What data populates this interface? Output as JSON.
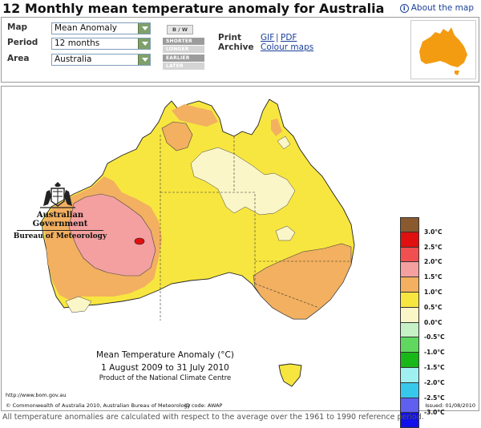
{
  "page": {
    "title": "12 Monthly mean temperature anomaly for Australia",
    "about_link": "About the map"
  },
  "controls": {
    "map_label": "Map",
    "map_value": "Mean Anomaly",
    "period_label": "Period",
    "period_value": "12 months",
    "area_label": "Area",
    "area_value": "Australia",
    "bw_button": "B / W",
    "shorter_button": "SHORTER",
    "longer_button": "LONGER",
    "earlier_button": "EARLIER",
    "later_button": "LATER",
    "print_label": "Print",
    "archive_label": "Archive",
    "gif_link": "GIF",
    "separator": "|",
    "pdf_link": "PDF",
    "colour_maps_link": "Colour maps"
  },
  "map": {
    "gov_line1": "Australian Government",
    "gov_line2": "Bureau of Meteorology",
    "caption_title": "Mean Temperature Anomaly (°C)",
    "caption_dates": "1 August 2009 to 31 July 2010",
    "caption_product": "Product of the National Climate Centre",
    "url": "http://www.bom.gov.au",
    "copyright": "© Commonwealth of Australia 2010, Australian Bureau of Meteorology",
    "id_code": "ID code: AWAP",
    "issued": "Issued: 01/08/2010",
    "legend": [
      {
        "label": "3.0°C",
        "color": "#8a5a2e"
      },
      {
        "label": "2.5°C",
        "color": "#e01010"
      },
      {
        "label": "2.0°C",
        "color": "#f25050"
      },
      {
        "label": "1.5°C",
        "color": "#f4a0a0"
      },
      {
        "label": "1.0°C",
        "color": "#f2b060"
      },
      {
        "label": "0.5°C",
        "color": "#f8e640"
      },
      {
        "label": "0.0°C",
        "color": "#fbf6c8"
      },
      {
        "label": "-0.5°C",
        "color": "#c6f0c6"
      },
      {
        "label": "-1.0°C",
        "color": "#60d860"
      },
      {
        "label": "-1.5°C",
        "color": "#18b818"
      },
      {
        "label": "-2.0°C",
        "color": "#a0f0f0"
      },
      {
        "label": "-2.5°C",
        "color": "#38c8ec"
      },
      {
        "label": "-3.0°C",
        "color": "#6060f0"
      },
      {
        "label": "",
        "color": "#1010e8"
      }
    ]
  },
  "footnote": "All temperature anomalies are calculated with respect to the average over the 1961 to 1990 reference period."
}
